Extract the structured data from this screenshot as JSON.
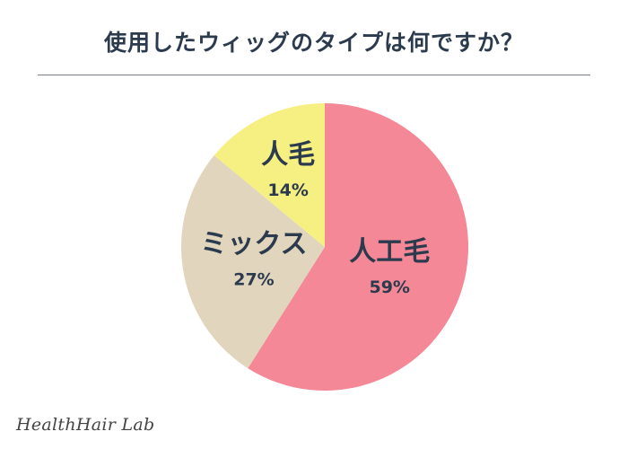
{
  "header": {
    "title": "使用したウィッグのタイプは何ですか？"
  },
  "chart_data": {
    "type": "pie",
    "title": "使用したウィッグのタイプは何ですか？",
    "slices": [
      {
        "label": "人工毛",
        "value": 59,
        "display": "59%",
        "color": "#f48897"
      },
      {
        "label": "ミックス",
        "value": 27,
        "display": "27%",
        "color": "#e2d5bd"
      },
      {
        "label": "人毛",
        "value": 14,
        "display": "14%",
        "color": "#f6ef82"
      }
    ],
    "start": "12 o'clock",
    "direction": "clockwise",
    "legend": "none"
  },
  "brand": {
    "text": "HealthHair Lab"
  }
}
